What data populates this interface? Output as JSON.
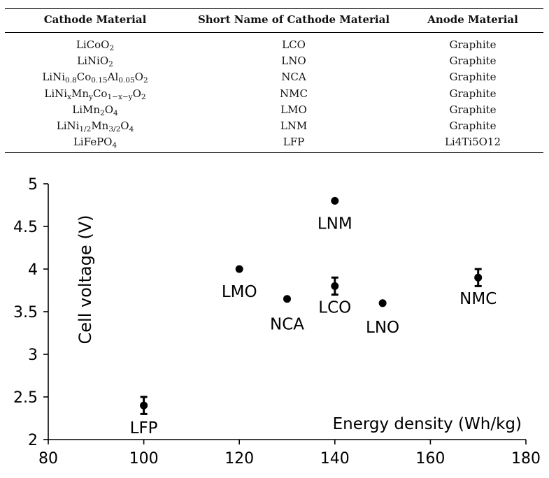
{
  "table": {
    "headers": [
      "Cathode Material",
      "Short Name of Cathode Material",
      "Anode Material"
    ],
    "rows": [
      {
        "cathode": [
          [
            "LiCoO",
            ""
          ],
          [
            "2",
            "sub"
          ]
        ],
        "short": "LCO",
        "anode": "Graphite"
      },
      {
        "cathode": [
          [
            "LiNiO",
            ""
          ],
          [
            "2",
            "sub"
          ]
        ],
        "short": "LNO",
        "anode": "Graphite"
      },
      {
        "cathode": [
          [
            "LiNi",
            ""
          ],
          [
            "0.8",
            "sub"
          ],
          [
            "Co",
            ""
          ],
          [
            "0.15",
            "sub"
          ],
          [
            "Al",
            ""
          ],
          [
            "0.05",
            "sub"
          ],
          [
            "O",
            ""
          ],
          [
            "2",
            "sub"
          ]
        ],
        "short": "NCA",
        "anode": "Graphite"
      },
      {
        "cathode": [
          [
            "LiNi",
            ""
          ],
          [
            "x",
            "sub"
          ],
          [
            "Mn",
            ""
          ],
          [
            "y",
            "sub"
          ],
          [
            "Co",
            ""
          ],
          [
            "1−x−y",
            "sub"
          ],
          [
            "O",
            ""
          ],
          [
            "2",
            "sub"
          ]
        ],
        "short": "NMC",
        "anode": "Graphite"
      },
      {
        "cathode": [
          [
            "LiMn",
            ""
          ],
          [
            "2",
            "sub"
          ],
          [
            "O",
            ""
          ],
          [
            "4",
            "sub"
          ]
        ],
        "short": "LMO",
        "anode": "Graphite"
      },
      {
        "cathode": [
          [
            "LiNi",
            ""
          ],
          [
            "1/2",
            "sub"
          ],
          [
            "Mn",
            ""
          ],
          [
            "3/2",
            "sub"
          ],
          [
            "O",
            ""
          ],
          [
            "4",
            "sub"
          ]
        ],
        "short": "LNM",
        "anode": "Graphite"
      },
      {
        "cathode": [
          [
            "LiFePO",
            ""
          ],
          [
            "4",
            "sub"
          ]
        ],
        "short": "LFP",
        "anode": "Li4Ti5O12"
      }
    ]
  },
  "chart_data": {
    "type": "scatter",
    "xlabel": "Energy density (Wh/kg)",
    "ylabel": "Cell voltage (V)",
    "xlim": [
      80,
      180
    ],
    "ylim": [
      2,
      5
    ],
    "xticks": [
      80,
      100,
      120,
      140,
      160,
      180
    ],
    "yticks": [
      2,
      2.5,
      3,
      3.5,
      4,
      4.5,
      5
    ],
    "ytick_labels": [
      "2",
      "2.5",
      "3",
      "3.5",
      "4",
      "4.5",
      "5"
    ],
    "points": [
      {
        "label": "LFP",
        "x": 100,
        "y": 2.4,
        "err": 0.1
      },
      {
        "label": "LMO",
        "x": 120,
        "y": 4.0,
        "err": null
      },
      {
        "label": "NCA",
        "x": 130,
        "y": 3.65,
        "err": null
      },
      {
        "label": "LCO",
        "x": 140,
        "y": 3.8,
        "err": 0.1
      },
      {
        "label": "LNM",
        "x": 140,
        "y": 4.8,
        "err": null
      },
      {
        "label": "LNO",
        "x": 150,
        "y": 3.6,
        "err": null
      },
      {
        "label": "NMC",
        "x": 170,
        "y": 3.9,
        "err": 0.1
      }
    ]
  }
}
